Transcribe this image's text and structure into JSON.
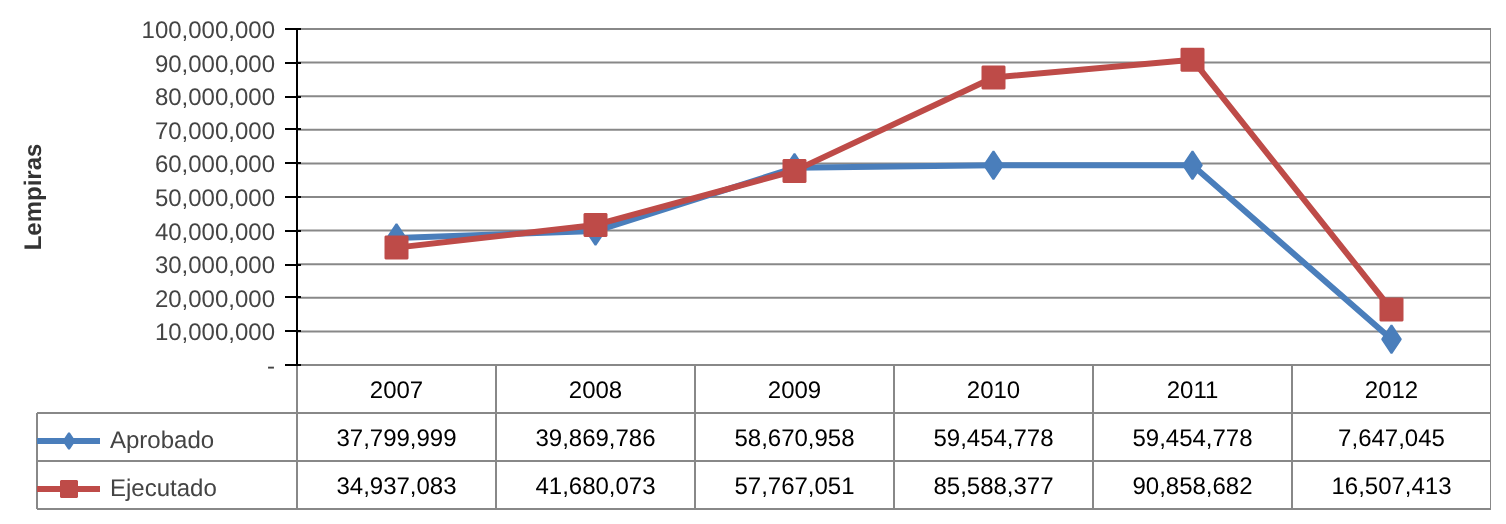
{
  "chart_data": {
    "type": "line",
    "ylabel": "Lempiras",
    "categories": [
      "2007",
      "2008",
      "2009",
      "2010",
      "2011",
      "2012"
    ],
    "series": [
      {
        "name": "Aprobado",
        "color": "#4a7ebb",
        "marker": "diamond",
        "values": [
          37799999,
          39869786,
          58670958,
          59454778,
          59454778,
          7647045
        ],
        "value_labels": [
          "37,799,999",
          "39,869,786",
          "58,670,958",
          "59,454,778",
          "59,454,778",
          "7,647,045"
        ]
      },
      {
        "name": "Ejecutado",
        "color": "#be4b48",
        "marker": "square",
        "values": [
          34937083,
          41680073,
          57767051,
          85588377,
          90858682,
          16507413
        ],
        "value_labels": [
          "34,937,083",
          "41,680,073",
          "57,767,051",
          "85,588,377",
          "90,858,682",
          "16,507,413"
        ]
      }
    ],
    "ylim": [
      0,
      100000000
    ],
    "yticks": [
      {
        "value": 0,
        "label": "-"
      },
      {
        "value": 10000000,
        "label": "10,000,000"
      },
      {
        "value": 20000000,
        "label": "20,000,000"
      },
      {
        "value": 30000000,
        "label": "30,000,000"
      },
      {
        "value": 40000000,
        "label": "40,000,000"
      },
      {
        "value": 50000000,
        "label": "50,000,000"
      },
      {
        "value": 60000000,
        "label": "60,000,000"
      },
      {
        "value": 70000000,
        "label": "70,000,000"
      },
      {
        "value": 80000000,
        "label": "80,000,000"
      },
      {
        "value": 90000000,
        "label": "90,000,000"
      },
      {
        "value": 100000000,
        "label": "100,000,000"
      }
    ],
    "grid": "y",
    "legend": "bottom",
    "line_style": "solid"
  }
}
